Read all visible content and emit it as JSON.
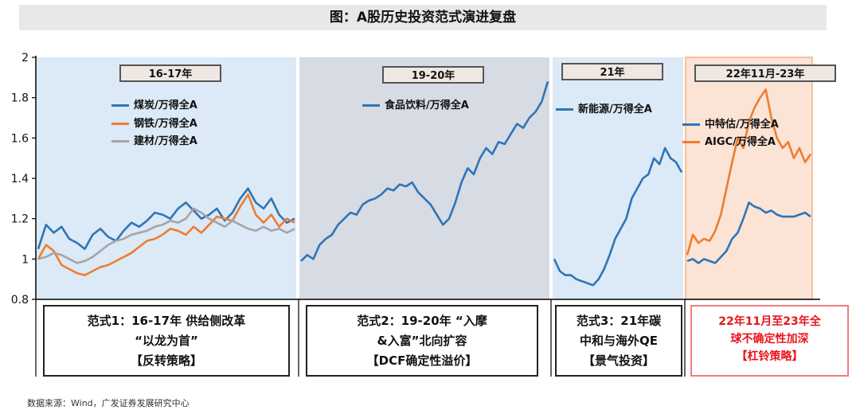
{
  "title": "图：A股历史投资范式演进复盘",
  "source": "数据来源：Wind，广发证券发展研究中心",
  "colors": {
    "blue": "#2e75b6",
    "orange": "#ed7d31",
    "gray": "#a5a5a5",
    "region_blue": "#dce9f6",
    "region_gray": "#d6dbe4",
    "region_orange": "#fbe3d6"
  },
  "periods": [
    {
      "label": "16-17年",
      "legend": [
        {
          "name": "煤炭/万得全A",
          "color": "#2e75b6"
        },
        {
          "name": "钢铁/万得全A",
          "color": "#ed7d31"
        },
        {
          "name": "建材/万得全A",
          "color": "#a5a5a5"
        }
      ]
    },
    {
      "label": "19-20年",
      "legend": [
        {
          "name": "食品饮料/万得全A",
          "color": "#2e75b6"
        }
      ]
    },
    {
      "label": "21年",
      "legend": [
        {
          "name": "新能源/万得全A",
          "color": "#2e75b6"
        }
      ]
    },
    {
      "label": "22年11月-23年",
      "legend": [
        {
          "name": "中特估/万得全A",
          "color": "#2e75b6"
        },
        {
          "name": "AIGC/万得全A",
          "color": "#ed7d31"
        }
      ]
    }
  ],
  "paradigms": [
    {
      "lines": [
        "范式1：16-17年 供给侧改革",
        "“以龙为首”",
        "【反转策略】"
      ]
    },
    {
      "lines": [
        "范式2：19-20年 “入摩",
        "&入富”北向扩容",
        "【DCF确定性溢价】"
      ]
    },
    {
      "lines": [
        "范式3：21年碳",
        "中和与海外QE",
        "【景气投资】"
      ]
    },
    {
      "lines": [
        "22年11月至23年全",
        "球不确定性加深",
        "【杠铃策略】"
      ]
    }
  ],
  "chart_data": {
    "type": "line",
    "ylim": [
      0.8,
      2.0
    ],
    "y_ticks": [
      "0.8",
      "1",
      "1.2",
      "1.4",
      "1.6",
      "1.8",
      "2"
    ],
    "segments": [
      {
        "period": "16-17年",
        "series": [
          {
            "name": "煤炭/万得全A",
            "values": [
              1.05,
              1.17,
              1.13,
              1.16,
              1.1,
              1.08,
              1.05,
              1.12,
              1.15,
              1.11,
              1.09,
              1.14,
              1.18,
              1.16,
              1.19,
              1.23,
              1.22,
              1.2,
              1.25,
              1.28,
              1.24,
              1.2,
              1.22,
              1.25,
              1.19,
              1.23,
              1.3,
              1.35,
              1.28,
              1.25,
              1.3,
              1.22,
              1.18,
              1.2
            ]
          },
          {
            "name": "钢铁/万得全A",
            "values": [
              1.0,
              1.07,
              1.04,
              0.97,
              0.95,
              0.93,
              0.92,
              0.94,
              0.96,
              0.97,
              0.99,
              1.01,
              1.03,
              1.06,
              1.09,
              1.1,
              1.12,
              1.15,
              1.14,
              1.12,
              1.16,
              1.13,
              1.17,
              1.21,
              1.2,
              1.19,
              1.26,
              1.32,
              1.22,
              1.18,
              1.22,
              1.16,
              1.2,
              1.18
            ]
          },
          {
            "name": "建材/万得全A",
            "values": [
              1.0,
              1.01,
              1.03,
              1.02,
              1.0,
              0.98,
              0.99,
              1.01,
              1.04,
              1.07,
              1.09,
              1.1,
              1.12,
              1.13,
              1.14,
              1.16,
              1.17,
              1.19,
              1.18,
              1.2,
              1.25,
              1.23,
              1.2,
              1.18,
              1.16,
              1.19,
              1.17,
              1.15,
              1.14,
              1.16,
              1.14,
              1.15,
              1.13,
              1.15
            ]
          }
        ]
      },
      {
        "period": "19-20年",
        "series": [
          {
            "name": "食品饮料/万得全A",
            "values": [
              0.99,
              1.02,
              1.0,
              1.07,
              1.1,
              1.12,
              1.17,
              1.2,
              1.23,
              1.22,
              1.27,
              1.29,
              1.3,
              1.32,
              1.35,
              1.34,
              1.37,
              1.36,
              1.38,
              1.33,
              1.3,
              1.27,
              1.22,
              1.17,
              1.2,
              1.28,
              1.38,
              1.45,
              1.42,
              1.5,
              1.55,
              1.52,
              1.58,
              1.57,
              1.62,
              1.67,
              1.65,
              1.7,
              1.73,
              1.78,
              1.88
            ]
          }
        ]
      },
      {
        "period": "21年",
        "series": [
          {
            "name": "新能源/万得全A",
            "values": [
              1.0,
              0.94,
              0.92,
              0.92,
              0.9,
              0.89,
              0.88,
              0.87,
              0.9,
              0.95,
              1.02,
              1.1,
              1.15,
              1.2,
              1.3,
              1.35,
              1.4,
              1.42,
              1.5,
              1.47,
              1.55,
              1.5,
              1.48,
              1.43
            ]
          }
        ]
      },
      {
        "period": "22年11月-23年",
        "series": [
          {
            "name": "中特估/万得全A",
            "values": [
              0.99,
              1.0,
              0.98,
              1.0,
              0.99,
              0.98,
              1.01,
              1.04,
              1.1,
              1.13,
              1.2,
              1.28,
              1.26,
              1.25,
              1.23,
              1.24,
              1.22,
              1.21,
              1.21,
              1.21,
              1.22,
              1.23,
              1.21
            ]
          },
          {
            "name": "AIGC/万得全A",
            "values": [
              1.02,
              1.12,
              1.08,
              1.1,
              1.09,
              1.14,
              1.22,
              1.35,
              1.48,
              1.6,
              1.55,
              1.68,
              1.75,
              1.8,
              1.84,
              1.7,
              1.6,
              1.55,
              1.58,
              1.5,
              1.55,
              1.48,
              1.52
            ]
          }
        ]
      }
    ]
  }
}
